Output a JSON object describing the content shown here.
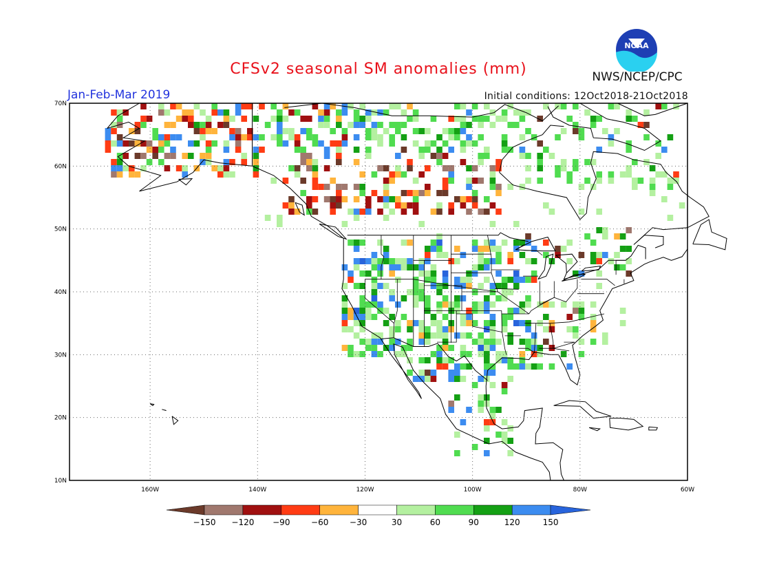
{
  "header": {
    "title": "CFSv2 seasonal SM anomalies (mm)",
    "period": "Jan-Feb-Mar 2019",
    "initial_conditions": "Initial conditions: 12Oct2018-21Oct2018",
    "agency": "NWS/NCEP/CPC",
    "logo_text": "NOAA"
  },
  "map": {
    "lon_range": [
      -175,
      -60
    ],
    "lat_range": [
      10,
      70
    ],
    "lon_labels": [
      "160W",
      "140W",
      "120W",
      "100W",
      "80W",
      "60W"
    ],
    "lat_labels": [
      "10N",
      "20N",
      "30N",
      "40N",
      "50N",
      "60N",
      "70N"
    ]
  },
  "legend": {
    "tick_labels": [
      "-150",
      "-120",
      "-90",
      "-60",
      "-30",
      "30",
      "60",
      "90",
      "120",
      "150"
    ],
    "colors": [
      "#6b3a2a",
      "#a0786e",
      "#a01010",
      "#ff3c14",
      "#ffb43c",
      "#ffffff",
      "#b4f0a0",
      "#50dc50",
      "#14a014",
      "#3c8cf0",
      "#2864dc"
    ]
  }
}
